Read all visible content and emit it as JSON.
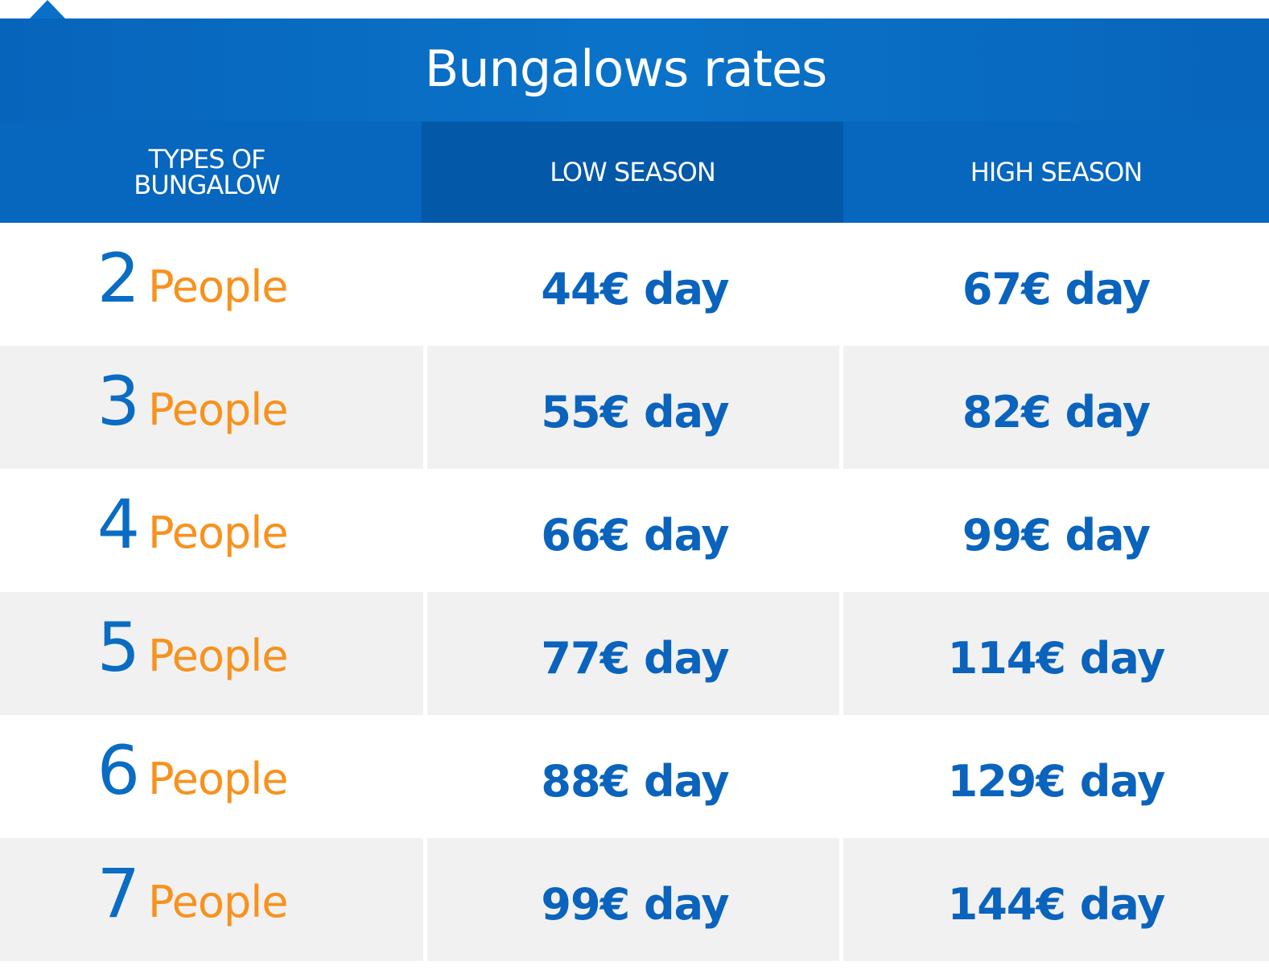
{
  "title": "Bungalows rates",
  "headers": {
    "type": "TYPES OF BUNGALOW",
    "low": "LOW SEASON",
    "high": "HIGH SEASON"
  },
  "rows": [
    {
      "count": "2",
      "unit": "People",
      "low": "44€ day",
      "high": "67€ day"
    },
    {
      "count": "3",
      "unit": "People",
      "low": "55€ day",
      "high": "82€ day"
    },
    {
      "count": "4",
      "unit": "People",
      "low": "66€ day",
      "high": "99€ day"
    },
    {
      "count": "5",
      "unit": "People",
      "low": "77€ day",
      "high": "114€ day"
    },
    {
      "count": "6",
      "unit": "People",
      "low": "88€ day",
      "high": "129€ day"
    },
    {
      "count": "7",
      "unit": "People",
      "low": "99€ day",
      "high": "144€ day"
    }
  ],
  "colors": {
    "brand_blue": "#0766bd",
    "header_low_season": "#0458a8",
    "people_orange": "#f7921e",
    "price_blue": "#0a63bd",
    "row_shade": "#f1f1f1"
  }
}
